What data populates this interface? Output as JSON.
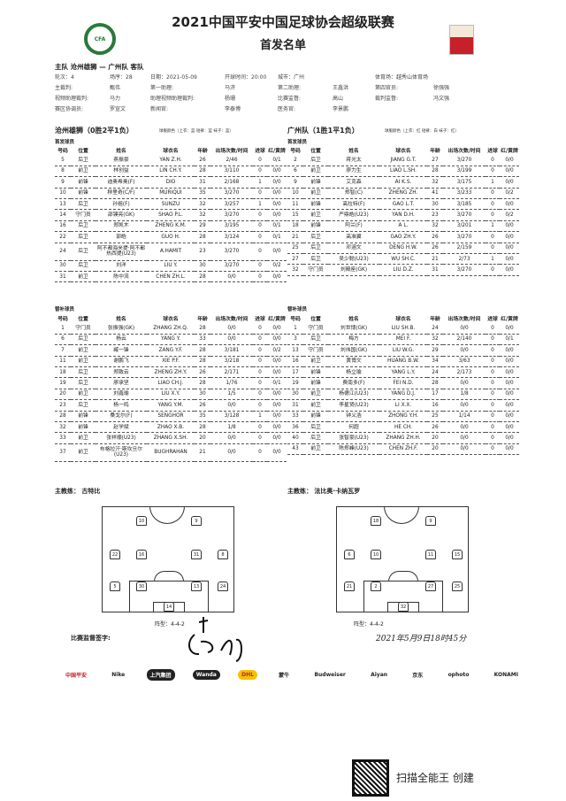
{
  "header": {
    "title": "2021中国平安中国足球协会超级联赛",
    "subtitle": "首发名单",
    "logo_left": "CFA",
    "logo_right": "中国平安"
  },
  "match": {
    "matchup": "主队 沧州雄狮 — 广州队 客队",
    "info_rows": [
      [
        "轮次：4",
        "场序：28",
        "日期：2021-05-09",
        "开球时间：20:00",
        "城市：广州",
        "",
        "体育场：越秀山体育场",
        ""
      ],
      [
        "主裁判:",
        "甄伟",
        "第一助理:",
        "马济",
        "第二助理:",
        "王鑫洪",
        "第四官员:",
        "徐强强"
      ],
      [
        "视频助理裁判:",
        "马力",
        "助理视频助理裁判:",
        "杨珊",
        "比赛监督:",
        "高山",
        "裁判监督:",
        "冯文强"
      ],
      [
        "赛区协调员:",
        "罗宣文",
        "新闻官:",
        "李泰博",
        "医务官:",
        "李景鹏",
        "",
        ""
      ]
    ]
  },
  "columns": [
    "号码",
    "位置",
    "姓名",
    "球衣名",
    "年龄",
    "出场次数/时间",
    "进球",
    "红/黄牌"
  ],
  "home": {
    "name": "沧州雄狮（0胜2平1负）",
    "kit": "球服颜色（上衣：蓝 短裤：蓝 袜子：蓝）",
    "starters_label": "首发球员",
    "subs_label": "替补球员",
    "coach": "主教练： 古特比",
    "formation": "阵型：4-4-2",
    "starters": [
      [
        "5",
        "后卫",
        "燕振豪",
        "YAN Z.H.",
        "26",
        "2/46",
        "0",
        "0/1"
      ],
      [
        "8",
        "前卫",
        "林创益",
        "LIN CH.Y.",
        "28",
        "3/110",
        "0",
        "0/0"
      ],
      [
        "9",
        "前锋",
        "迪奥希奥(F)",
        "DIO",
        "31",
        "2/168",
        "1",
        "0/0"
      ],
      [
        "10",
        "前锋",
        "穆里奇(C/F)",
        "MURIQUI",
        "35",
        "3/270",
        "0",
        "0/0"
      ],
      [
        "13",
        "后卫",
        "孙祖(F)",
        "SUNZU",
        "32",
        "3/257",
        "1",
        "0/0"
      ],
      [
        "14",
        "守门员",
        "邵镤亮(GK)",
        "SHAO P.L.",
        "32",
        "3/270",
        "0",
        "0/0"
      ],
      [
        "16",
        "后卫",
        "郑凯木",
        "ZHENG K.M.",
        "29",
        "3/195",
        "0",
        "0/1"
      ],
      [
        "22",
        "后卫",
        "郭皓",
        "GUO H.",
        "28",
        "3/124",
        "0",
        "0/1"
      ],
      [
        "24",
        "后卫",
        "阿不都海米提·阿不都热西提(U23)",
        "A.HAMIT",
        "23",
        "3/270",
        "0",
        "0/0"
      ],
      [
        "30",
        "后卫",
        "刘洋",
        "LIU Y.",
        "30",
        "3/270",
        "0",
        "0/2"
      ],
      [
        "31",
        "前卫",
        "陈中流",
        "CHEN ZH.L.",
        "28",
        "0/0",
        "0",
        "0/0"
      ]
    ],
    "subs": [
      [
        "1",
        "守门员",
        "张振强(GK)",
        "ZHANG ZH.Q.",
        "28",
        "0/0",
        "0",
        "0/0"
      ],
      [
        "6",
        "后卫",
        "杨云",
        "YANG Y.",
        "33",
        "0/0",
        "0",
        "0/0"
      ],
      [
        "7",
        "前卫",
        "臧一锋",
        "ZANG Y.F.",
        "28",
        "3/181",
        "0",
        "0/2"
      ],
      [
        "11",
        "前卫",
        "谢鹏飞",
        "XIE P.F.",
        "28",
        "3/218",
        "0",
        "0/0"
      ],
      [
        "18",
        "后卫",
        "郑致云",
        "ZHENG ZH.Y.",
        "26",
        "2/171",
        "0",
        "0/0"
      ],
      [
        "19",
        "后卫",
        "廖承坚",
        "LIAO CH.J.",
        "28",
        "1/76",
        "0",
        "0/1"
      ],
      [
        "20",
        "前卫",
        "刘鑫瑜",
        "LIU X.Y.",
        "30",
        "1/5",
        "0",
        "0/0"
      ],
      [
        "23",
        "后卫",
        "杨一鸣",
        "YANG Y.M.",
        "26",
        "0/0",
        "0",
        "0/0"
      ],
      [
        "28",
        "前锋",
        "桑戈尔(F)",
        "SENGHOR",
        "35",
        "3/128",
        "1",
        "0/0"
      ],
      [
        "32",
        "前锋",
        "赵学斌",
        "ZHAO X.B.",
        "28",
        "1/8",
        "0",
        "0/0"
      ],
      [
        "33",
        "前卫",
        "张祥顺(U23)",
        "ZHANG X.SH.",
        "20",
        "0/0",
        "0",
        "0/0"
      ],
      [
        "37",
        "前卫",
        "布格拉汗·斯坎旦尔(U23)",
        "BUGHRAHAN",
        "21",
        "0/0",
        "0",
        "0/0"
      ]
    ],
    "lineup": [
      [
        "10",
        "9"
      ],
      [
        "22",
        "16",
        "31",
        "8"
      ],
      [
        "5",
        "30",
        "13",
        "24"
      ],
      [
        "14"
      ]
    ]
  },
  "away": {
    "name": "广州队（1胜1平1负）",
    "kit": "球服颜色（上衣：红 短裤：白 袜子：红）",
    "starters_label": "首发球员",
    "subs_label": "替补球员",
    "coach": "主教练： 法比奥·卡纳瓦罗",
    "formation": "阵型：4-4-2",
    "starters": [
      [
        "2",
        "后卫",
        "蒋光太",
        "JIANG G.T.",
        "27",
        "3/270",
        "0",
        "0/0"
      ],
      [
        "6",
        "前卫",
        "廖力生",
        "LIAO L.SH.",
        "28",
        "3/199",
        "0",
        "0/0"
      ],
      [
        "9",
        "前锋",
        "艾克森",
        "AI K.S.",
        "32",
        "3/175",
        "1",
        "0/0"
      ],
      [
        "10",
        "前卫",
        "郑智(C)",
        "ZHENG ZH.",
        "41",
        "3/233",
        "0",
        "0/2"
      ],
      [
        "11",
        "前锋",
        "高拉特(F)",
        "GAO L.T.",
        "30",
        "3/185",
        "0",
        "0/0"
      ],
      [
        "15",
        "前卫",
        "严鼎皓(U23)",
        "YAN D.H.",
        "23",
        "3/270",
        "0",
        "0/2"
      ],
      [
        "18",
        "前锋",
        "阿兰(F)",
        "A L.",
        "32",
        "3/201",
        "1",
        "0/0"
      ],
      [
        "21",
        "后卫",
        "高准翼",
        "GAO ZH.Y.",
        "26",
        "3/270",
        "0",
        "0/0"
      ],
      [
        "25",
        "后卫",
        "邓涵文",
        "DENG H.W.",
        "26",
        "2/159",
        "0",
        "0/0"
      ],
      [
        "27",
        "后卫",
        "吴少聪(U23)",
        "WU SH.C.",
        "21",
        "2/73",
        "1",
        "0/0"
      ],
      [
        "32",
        "守门员",
        "刘殿座(GK)",
        "LIU D.Z.",
        "31",
        "3/270",
        "0",
        "0/0"
      ]
    ],
    "subs": [
      [
        "1",
        "守门员",
        "刘世博(GK)",
        "LIU SH.B.",
        "24",
        "0/0",
        "0",
        "0/0"
      ],
      [
        "3",
        "后卫",
        "梅方",
        "MEI F.",
        "32",
        "2/140",
        "0",
        "0/1"
      ],
      [
        "13",
        "守门员",
        "刘伟国(GK)",
        "LIU W.G.",
        "29",
        "0/0",
        "0",
        "0/0"
      ],
      [
        "16",
        "前卫",
        "黄博文",
        "HUANG B.W.",
        "34",
        "3/63",
        "0",
        "0/0"
      ],
      [
        "17",
        "前锋",
        "杨立瑜",
        "YANG L.Y.",
        "24",
        "2/173",
        "0",
        "0/0"
      ],
      [
        "19",
        "前锋",
        "费南多(F)",
        "FEI N.D.",
        "28",
        "0/0",
        "0",
        "0/0"
      ],
      [
        "30",
        "前卫",
        "杨德江(U23)",
        "YANG D.J.",
        "17",
        "1/8",
        "0",
        "0/0"
      ],
      [
        "31",
        "前卫",
        "李星贤(U23)",
        "LI X.X.",
        "16",
        "0/0",
        "0",
        "0/0"
      ],
      [
        "33",
        "前锋",
        "钟义浩",
        "ZHONG Y.H.",
        "25",
        "1/14",
        "0",
        "0/0"
      ],
      [
        "36",
        "后卫",
        "何超",
        "HE CH.",
        "26",
        "0/0",
        "0",
        "0/0"
      ],
      [
        "40",
        "后卫",
        "张智豪(U23)",
        "ZHANG ZH.H.",
        "20",
        "0/0",
        "0",
        "0/0"
      ],
      [
        "43",
        "前卫",
        "陈郑峰(U23)",
        "CHEN ZH.F.",
        "20",
        "0/0",
        "0",
        "0/0"
      ]
    ],
    "lineup": [
      [
        "18",
        "9"
      ],
      [
        "6",
        "10",
        "11",
        "15"
      ],
      [
        "21",
        "2",
        "27",
        "25"
      ],
      [
        "32"
      ]
    ]
  },
  "footer": {
    "supervisor_label": "比赛监督签字:",
    "signature_date": "2021年5月9日18时45分",
    "sponsors": [
      "中国平安",
      "Nike",
      "上汽集团",
      "Wanda",
      "DHL",
      "蒙牛",
      "Budweiser",
      "Aiyan",
      "京东",
      "ophoto",
      "KONAMI"
    ],
    "scanner": "扫描全能王 创建"
  }
}
